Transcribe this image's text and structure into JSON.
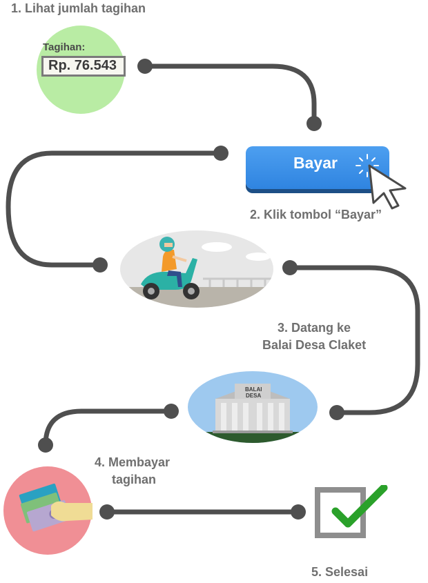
{
  "steps": [
    {
      "label": "1. Lihat jumlah tagihan"
    },
    {
      "label": "2. Klik tombol “Bayar”"
    },
    {
      "label_line1": "3. Datang ke",
      "label_line2": "Balai Desa Claket"
    },
    {
      "label_line1": "4. Membayar",
      "label_line2": "tagihan"
    },
    {
      "label": "5. Selesai"
    }
  ],
  "bill": {
    "caption": "Tagihan:",
    "amount": "Rp. 76.543"
  },
  "pay_button": {
    "label": "Bayar"
  },
  "building_sign": {
    "line1": "BALAI",
    "line2": "DESA"
  },
  "colors": {
    "path": "#4f4f4f",
    "step1_circle": "#b9eca4",
    "button_blue": "#3e93ea",
    "sky": "#9ec9ef",
    "money_circle": "#f08f95",
    "check_green": "#2aa12a"
  },
  "icons": [
    "cursor-icon",
    "scooter-rider-icon",
    "village-hall-icon",
    "money-icon",
    "checkbox-checked-icon"
  ]
}
